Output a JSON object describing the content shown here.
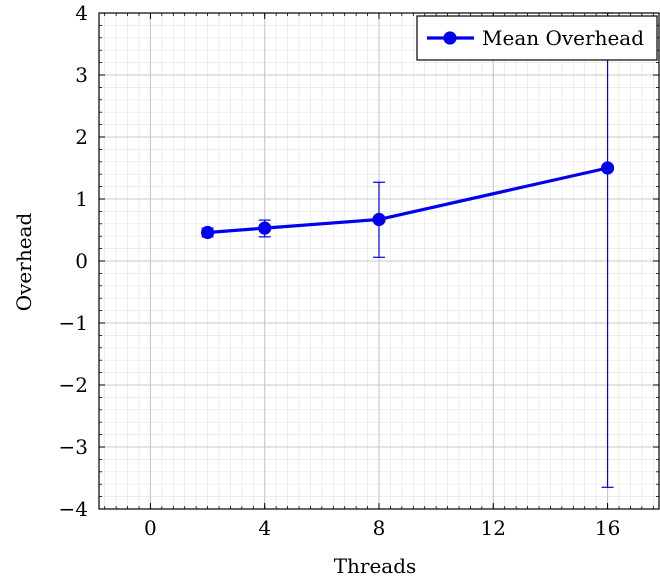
{
  "chart_data": {
    "type": "line",
    "xlabel": "Threads",
    "ylabel": "Overhead",
    "xlim": [
      -1.8,
      17.8
    ],
    "ylim": [
      -4,
      4
    ],
    "x_ticks": [
      0,
      4,
      8,
      12,
      16
    ],
    "y_ticks": [
      -4,
      -3,
      -2,
      -1,
      0,
      1,
      2,
      3,
      4
    ],
    "x_tick_labels": [
      "0",
      "4",
      "8",
      "12",
      "16"
    ],
    "y_tick_labels": [
      "−4",
      "−3",
      "−2",
      "−1",
      "0",
      "1",
      "2",
      "3",
      "4"
    ],
    "grid": true,
    "legend_position": "top-right",
    "series": [
      {
        "name": "Mean Overhead",
        "color": "#0000ee",
        "x": [
          2,
          4,
          8,
          16
        ],
        "y": [
          0.46,
          0.53,
          0.67,
          1.5
        ],
        "y_error_low": [
          0.39,
          0.39,
          0.06,
          -3.65
        ],
        "y_error_high": [
          0.53,
          0.66,
          1.27,
          4.0
        ]
      }
    ]
  }
}
